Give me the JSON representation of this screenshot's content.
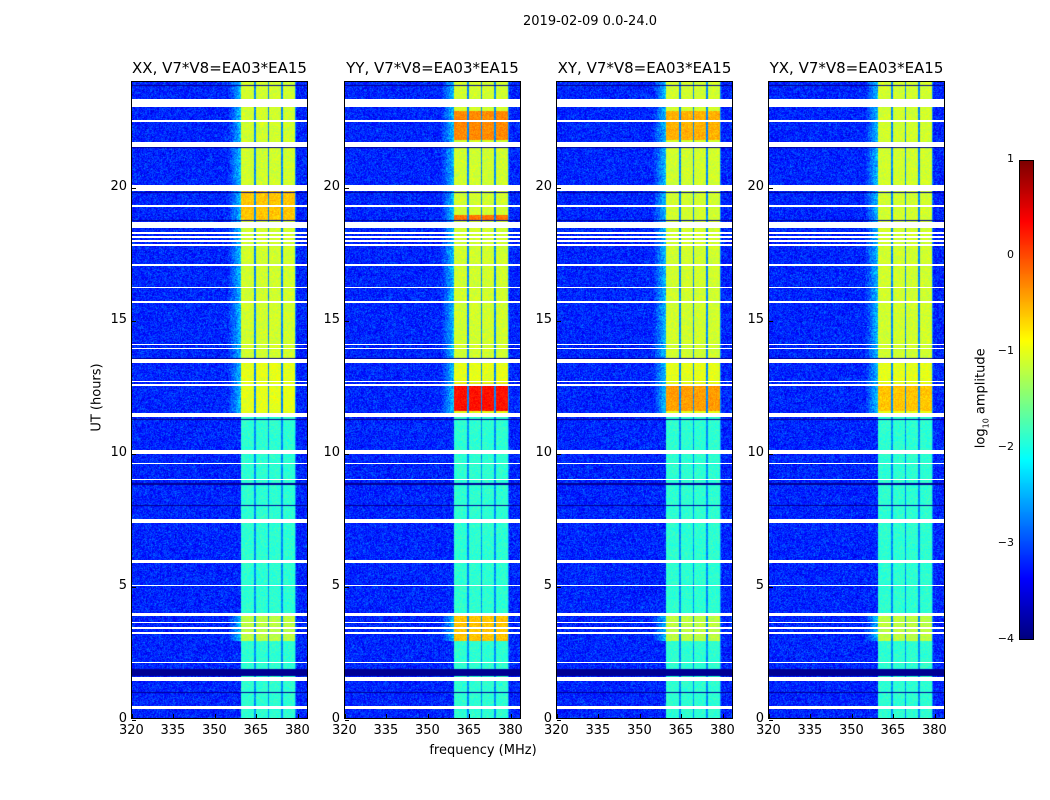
{
  "chart_data": {
    "type": "heatmap",
    "title": "2019-02-09 0.0-24.0",
    "xlabel": "frequency (MHz)",
    "ylabel": "UT (hours)",
    "xlim": [
      320,
      384
    ],
    "ylim": [
      0,
      24
    ],
    "xticks": [
      320,
      335,
      350,
      365,
      380
    ],
    "yticks": [
      0,
      5,
      10,
      15,
      20
    ],
    "colorbar": {
      "label_main": "log",
      "label_sub": "10",
      "label_rest": " amplitude",
      "range": [
        -4,
        1
      ],
      "ticks": [
        "1",
        "0",
        "−1",
        "−2",
        "−3",
        "−4"
      ],
      "tick_values": [
        1,
        0,
        -1,
        -2,
        -3,
        -4
      ],
      "colormap": "jet"
    },
    "background_log_amplitude": -3.2,
    "subbands_mhz": [
      [
        360,
        364.6
      ],
      [
        365.2,
        369.6
      ],
      [
        370.2,
        374.6
      ],
      [
        375.2,
        379.6
      ]
    ],
    "band_regions": [
      {
        "t": [
          13.6,
          24.0
        ],
        "value": -1.1
      },
      {
        "t": [
          11.4,
          13.6
        ],
        "value": -1.0
      },
      {
        "t": [
          0.0,
          11.4
        ],
        "value": -1.9
      },
      {
        "t": [
          2.9,
          3.9
        ],
        "value": -1.2
      }
    ],
    "flagged_hours": [
      [
        23.05,
        23.35
      ],
      [
        22.5,
        22.55
      ],
      [
        21.55,
        21.75
      ],
      [
        19.9,
        20.1
      ],
      [
        19.3,
        19.35
      ],
      [
        18.5,
        18.7
      ],
      [
        18.3,
        18.33
      ],
      [
        18.15,
        18.18
      ],
      [
        18.0,
        18.03
      ],
      [
        17.85,
        17.88
      ],
      [
        17.1,
        17.13
      ],
      [
        16.25,
        16.28
      ],
      [
        15.7,
        15.73
      ],
      [
        14.1,
        14.13
      ],
      [
        13.95,
        13.98
      ],
      [
        13.4,
        13.55
      ],
      [
        12.7,
        12.73
      ],
      [
        12.55,
        12.6
      ],
      [
        11.35,
        11.5
      ],
      [
        9.95,
        10.1
      ],
      [
        9.6,
        9.63
      ],
      [
        9.0,
        9.03
      ],
      [
        7.35,
        7.5
      ],
      [
        5.85,
        5.97
      ],
      [
        5.0,
        5.03
      ],
      [
        3.85,
        3.97
      ],
      [
        3.6,
        3.63
      ],
      [
        3.4,
        3.43
      ],
      [
        3.2,
        3.23
      ],
      [
        2.1,
        2.13
      ],
      [
        1.4,
        1.55
      ],
      [
        0.35,
        0.45
      ]
    ],
    "dark_hours": [
      [
        23.85,
        23.9
      ],
      [
        21.5,
        21.55
      ],
      [
        19.8,
        19.85
      ],
      [
        18.75,
        18.8
      ],
      [
        13.55,
        13.6
      ],
      [
        11.25,
        11.3
      ],
      [
        8.8,
        8.85
      ],
      [
        8.0,
        8.05
      ],
      [
        1.6,
        1.85
      ],
      [
        0.95,
        1.0
      ]
    ],
    "panels": [
      {
        "title": "XX, V7*V8=EA03*EA15",
        "hot_regions": [
          {
            "t": [
              18.8,
              19.9
            ],
            "value": -0.6
          }
        ]
      },
      {
        "title": "YY, V7*V8=EA03*EA15",
        "hot_regions": [
          {
            "t": [
              21.8,
              22.9
            ],
            "value": -0.3
          },
          {
            "t": [
              18.8,
              19.0
            ],
            "value": -0.2
          },
          {
            "t": [
              11.6,
              12.6
            ],
            "value": 0.3
          },
          {
            "t": [
              2.9,
              3.9
            ],
            "value": -0.6
          }
        ]
      },
      {
        "title": "XY, V7*V8=EA03*EA15",
        "hot_regions": [
          {
            "t": [
              21.8,
              22.9
            ],
            "value": -0.5
          },
          {
            "t": [
              11.6,
              12.6
            ],
            "value": -0.4
          }
        ]
      },
      {
        "title": "YX, V7*V8=EA03*EA15",
        "hot_regions": [
          {
            "t": [
              11.6,
              12.6
            ],
            "value": -0.6
          }
        ]
      }
    ]
  }
}
